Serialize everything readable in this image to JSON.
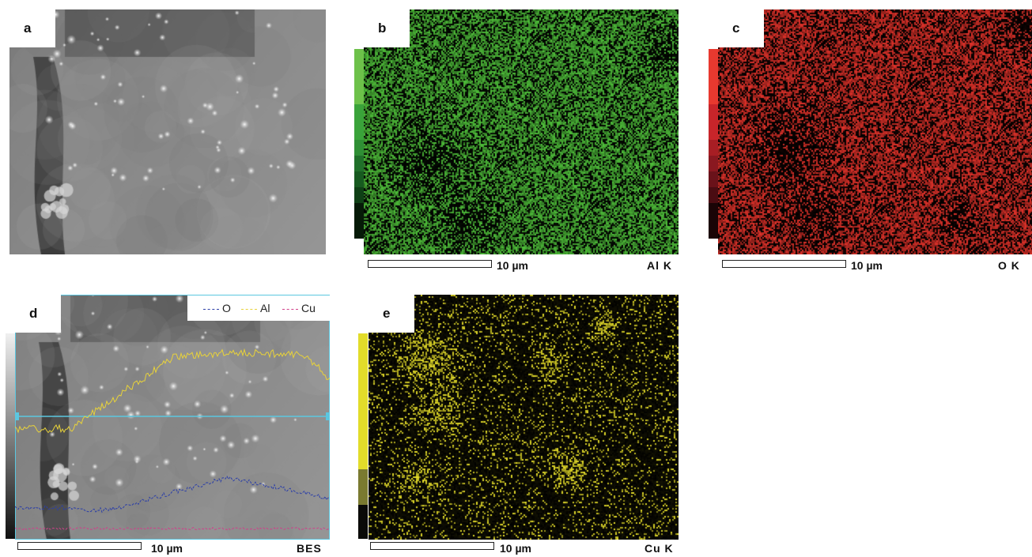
{
  "panels": {
    "a": {
      "label": "a"
    },
    "b": {
      "label": "b",
      "scale": "10 µm",
      "channel": "Al K",
      "color": "#4fbf3a"
    },
    "c": {
      "label": "c",
      "scale": "10 µm",
      "channel": "O K",
      "color": "#e0322a"
    },
    "d": {
      "label": "d",
      "scale": "10 µm",
      "channel": "BES"
    },
    "e": {
      "label": "e",
      "scale": "10 µm",
      "channel": "Cu K",
      "color": "#e8e02a"
    }
  },
  "legend": [
    {
      "name": "O",
      "color": "#2c3fa8"
    },
    {
      "name": "Al",
      "color": "#e8d23a"
    },
    {
      "name": "Cu",
      "color": "#d0408a"
    }
  ]
}
